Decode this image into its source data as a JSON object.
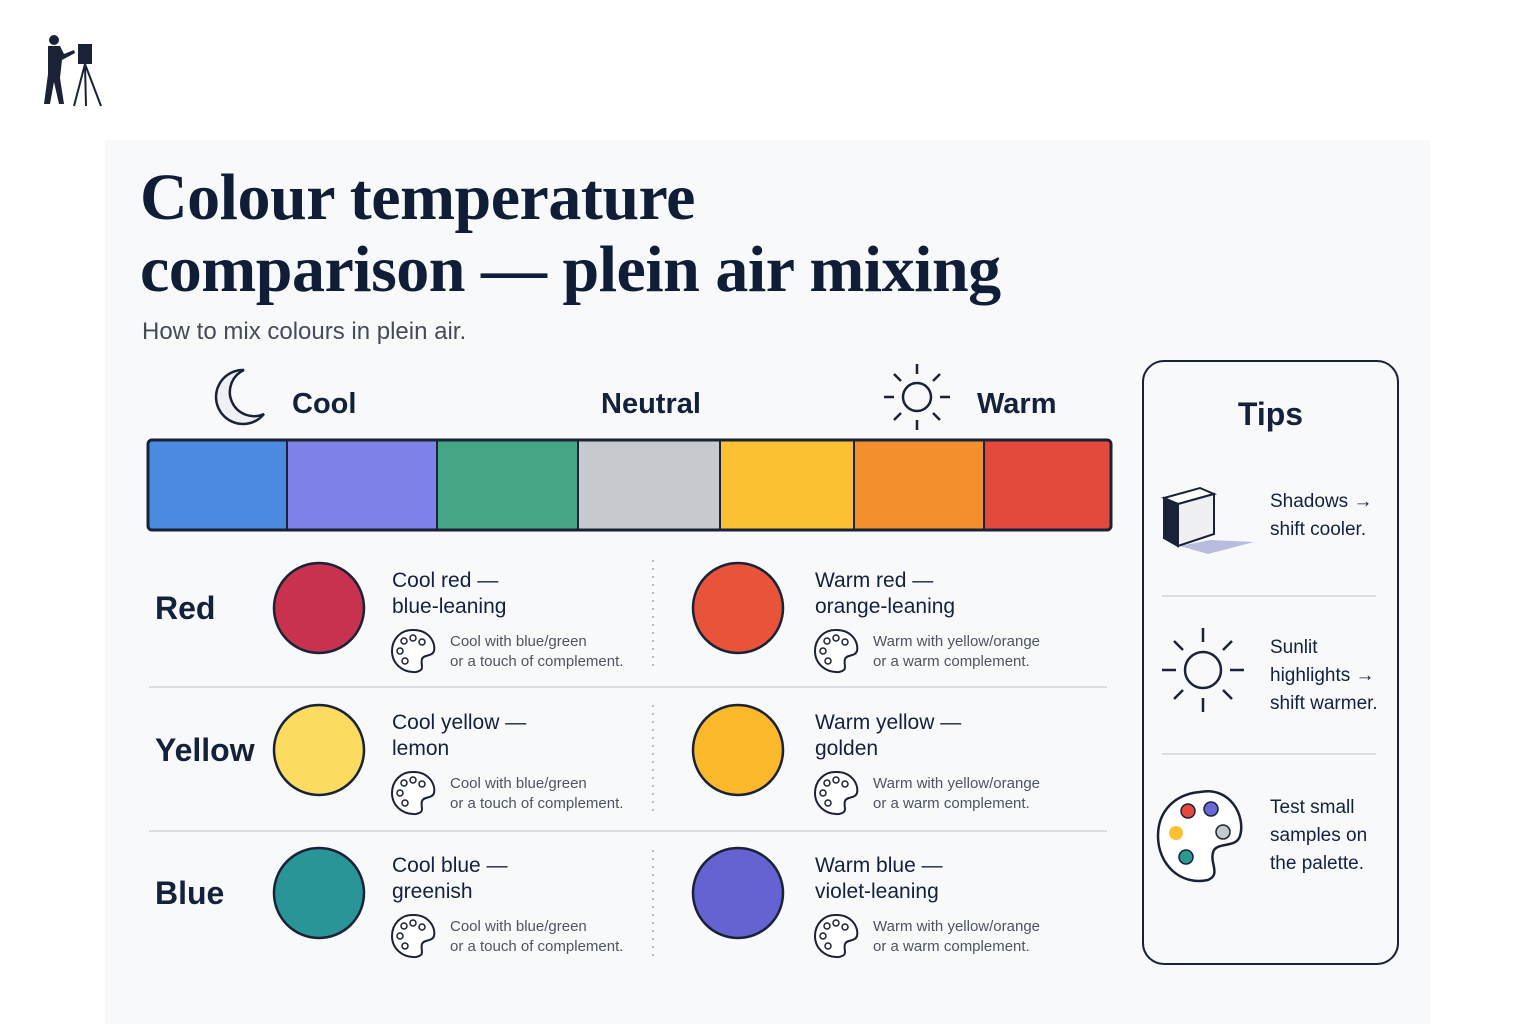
{
  "header": {
    "title": [
      "Colour temperature",
      "comparison — plein air mixing"
    ],
    "subtitle": "How to mix colours in plein air."
  },
  "scale": {
    "cool": "Cool",
    "neutral": "Neutral",
    "warm": "Warm"
  },
  "rows": [
    {
      "name": "Red",
      "cool": {
        "title": [
          "Cool red —",
          "blue-leaning"
        ],
        "note": [
          "Cool with blue/green",
          "or a touch of complement."
        ]
      },
      "warm": {
        "title": [
          "Warm red —",
          "orange-leaning"
        ],
        "note": [
          "Warm with yellow/orange",
          "or a warm complement."
        ]
      }
    },
    {
      "name": "Yellow",
      "cool": {
        "title": [
          "Cool yellow —",
          "lemon"
        ],
        "note": [
          "Cool with blue/green",
          "or a touch of complement."
        ]
      },
      "warm": {
        "title": [
          "Warm yellow —",
          "golden"
        ],
        "note": [
          "Warm with yellow/orange",
          "or a warm complement."
        ]
      }
    },
    {
      "name": "Blue",
      "cool": {
        "title": [
          "Cool blue —",
          "greenish"
        ],
        "note": [
          "Cool with blue/green",
          "or a touch of complement."
        ]
      },
      "warm": {
        "title": [
          "Warm blue —",
          "violet-leaning"
        ],
        "note": [
          "Warm with yellow/orange",
          "or a warm complement."
        ]
      }
    }
  ],
  "tips": {
    "title": "Tips",
    "items": [
      [
        "Shadows →",
        "shift cooler."
      ],
      [
        "Sunlit",
        "highlights →",
        "shift warmer."
      ],
      [
        "Test small",
        "samples on",
        "the palette."
      ]
    ]
  }
}
